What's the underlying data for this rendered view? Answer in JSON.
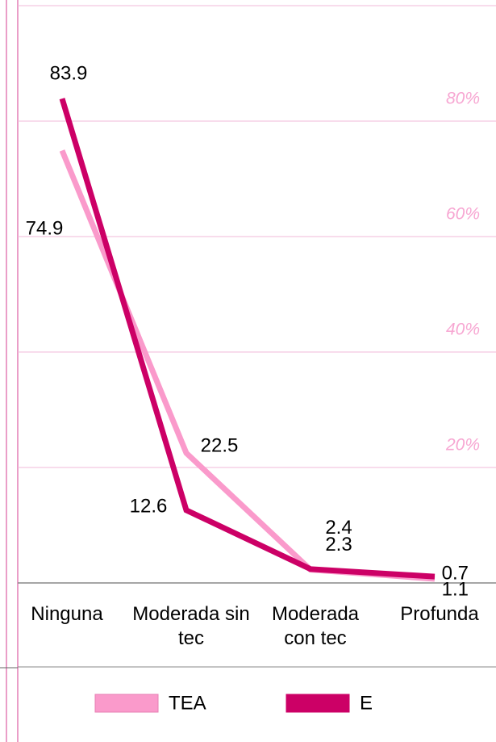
{
  "chart_data": {
    "type": "line",
    "categories": [
      "Ninguna",
      "Moderada sin tec",
      "Moderada con tec",
      "Profunda"
    ],
    "series": [
      {
        "name": "TEA",
        "color": "#fa9acb",
        "values": [
          74.9,
          22.5,
          2.3,
          0.7
        ]
      },
      {
        "name": "E",
        "color": "#cc0066",
        "values": [
          83.9,
          12.6,
          2.4,
          1.1
        ]
      }
    ],
    "ylim": [
      0,
      100
    ],
    "yticks": [
      {
        "value": 20,
        "label": "20%"
      },
      {
        "value": 40,
        "label": "40%"
      },
      {
        "value": 60,
        "label": "60%"
      },
      {
        "value": 80,
        "label": "80%"
      }
    ],
    "grid": true
  }
}
